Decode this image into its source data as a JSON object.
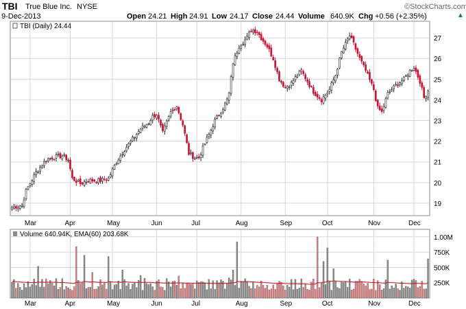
{
  "header": {
    "ticker": "TBI",
    "company": "True Blue Inc.",
    "exchange": "NYSE",
    "date": "9-Dec-2013",
    "watermark": "©StockCharts.com",
    "open_label": "Open",
    "open_value": "24.21",
    "high_label": "High",
    "high_value": "24.91",
    "low_label": "Low",
    "low_value": "24.17",
    "close_label": "Close",
    "close_value": "24.44",
    "volume_label": "Volume",
    "volume_value": "640.9K",
    "chg_label": "Chg",
    "chg_value": "+0.56 (+2.35%)",
    "chg_arrow": "▲"
  },
  "colors": {
    "up": "#222222",
    "down": "#cc1133",
    "vol_up": "#8a8a8a",
    "vol_down": "#e07a7a",
    "ema": "#d01020",
    "grid": "#d6d6d6",
    "frame": "#888888"
  },
  "chart_data": [
    {
      "type": "candlestick",
      "legend": "TBI (Daily) 24.44",
      "ylim": [
        18.4,
        27.8
      ],
      "yticks": [
        19,
        20,
        21,
        22,
        23,
        24,
        25,
        26,
        27
      ],
      "month_labels": [
        "Mar",
        "Apr",
        "May",
        "Jun",
        "Jul",
        "Aug",
        "Sep",
        "Oct",
        "Nov",
        "Dec"
      ],
      "month_start_index": [
        9,
        29,
        50,
        72,
        92,
        114,
        136,
        157,
        180,
        200
      ],
      "trading_days": 208,
      "anchors": [
        [
          0,
          18.8
        ],
        [
          5,
          18.9
        ],
        [
          7,
          19.6
        ],
        [
          12,
          20.5
        ],
        [
          17,
          21.1
        ],
        [
          20,
          21.2
        ],
        [
          25,
          21.3
        ],
        [
          28,
          21.1
        ],
        [
          30,
          20.2
        ],
        [
          34,
          19.95
        ],
        [
          38,
          20.1
        ],
        [
          44,
          20.1
        ],
        [
          48,
          20.2
        ],
        [
          52,
          21.0
        ],
        [
          56,
          21.6
        ],
        [
          60,
          22.1
        ],
        [
          64,
          22.6
        ],
        [
          68,
          22.9
        ],
        [
          70,
          23.2
        ],
        [
          72,
          23.3
        ],
        [
          75,
          22.4
        ],
        [
          79,
          23.4
        ],
        [
          82,
          23.7
        ],
        [
          85,
          22.8
        ],
        [
          88,
          21.4
        ],
        [
          91,
          21.2
        ],
        [
          93,
          21.2
        ],
        [
          97,
          22.1
        ],
        [
          101,
          23.0
        ],
        [
          105,
          23.6
        ],
        [
          107,
          24.0
        ],
        [
          108,
          24.3
        ],
        [
          110,
          25.8
        ],
        [
          113,
          26.6
        ],
        [
          117,
          27.0
        ],
        [
          119,
          27.4
        ],
        [
          122,
          27.3
        ],
        [
          124,
          27.0
        ],
        [
          127,
          26.6
        ],
        [
          130,
          26.0
        ],
        [
          133,
          25.0
        ],
        [
          136,
          24.6
        ],
        [
          139,
          24.8
        ],
        [
          142,
          25.2
        ],
        [
          144,
          25.4
        ],
        [
          147,
          24.9
        ],
        [
          150,
          24.4
        ],
        [
          154,
          24.0
        ],
        [
          158,
          24.5
        ],
        [
          161,
          25.2
        ],
        [
          164,
          26.3
        ],
        [
          168,
          27.1
        ],
        [
          170,
          26.7
        ],
        [
          173,
          26.0
        ],
        [
          176,
          25.4
        ],
        [
          180,
          24.5
        ],
        [
          182,
          23.6
        ],
        [
          184,
          23.4
        ],
        [
          187,
          24.3
        ],
        [
          191,
          24.7
        ],
        [
          195,
          25.0
        ],
        [
          198,
          25.4
        ],
        [
          200,
          25.6
        ],
        [
          203,
          24.9
        ],
        [
          205,
          24.1
        ],
        [
          207,
          24.44
        ]
      ]
    },
    {
      "type": "bar",
      "legend": "Volume 640.94K, EMA(60) 203.68K",
      "ylim": [
        0,
        1100000
      ],
      "yticks": [
        250000,
        500000,
        750000,
        1000000
      ],
      "ytick_labels": [
        "250K",
        "500K",
        "750K",
        "1.00M"
      ],
      "month_labels": [
        "Mar",
        "Apr",
        "May",
        "Jun",
        "Jul",
        "Aug",
        "Sep",
        "Oct",
        "Nov",
        "Dec"
      ],
      "base_volume": 230000,
      "ema_start": 270000,
      "spikes": [
        [
          13,
          520000
        ],
        [
          22,
          320000
        ],
        [
          32,
          840000
        ],
        [
          36,
          700000
        ],
        [
          40,
          420000
        ],
        [
          48,
          680000
        ],
        [
          55,
          460000
        ],
        [
          64,
          370000
        ],
        [
          83,
          360000
        ],
        [
          85,
          250000
        ],
        [
          104,
          300000
        ],
        [
          108,
          330000
        ],
        [
          110,
          460000
        ],
        [
          112,
          920000
        ],
        [
          127,
          210000
        ],
        [
          152,
          1000000
        ],
        [
          155,
          600000
        ],
        [
          157,
          820000
        ],
        [
          160,
          480000
        ],
        [
          187,
          620000
        ],
        [
          207,
          640940
        ]
      ]
    }
  ]
}
